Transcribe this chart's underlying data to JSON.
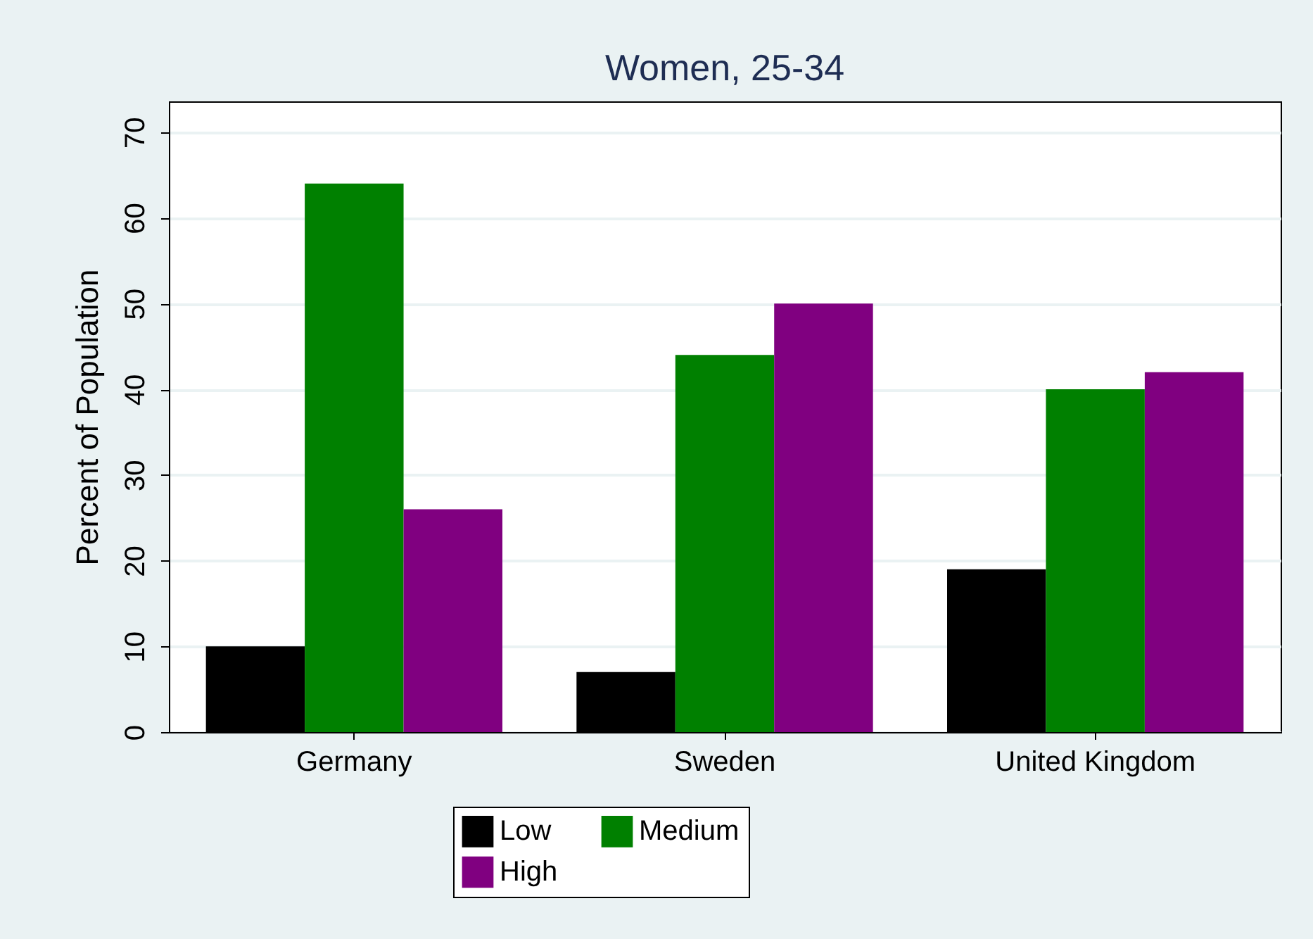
{
  "chart_data": {
    "type": "bar",
    "title": "Women, 25-34",
    "ylabel": "Percent of Population",
    "categories": [
      "Germany",
      "Sweden",
      "United Kingdom"
    ],
    "series": [
      {
        "name": "Low",
        "color": "#000000",
        "values": [
          10,
          7,
          19
        ]
      },
      {
        "name": "Medium",
        "color": "#008000",
        "values": [
          64,
          44,
          40
        ]
      },
      {
        "name": "High",
        "color": "#800080",
        "values": [
          26,
          50,
          42
        ]
      }
    ],
    "ylim": [
      0,
      73.6
    ],
    "yticks": [
      0,
      10,
      20,
      30,
      40,
      50,
      60,
      70
    ],
    "grid": "y",
    "legend": "bottom"
  }
}
